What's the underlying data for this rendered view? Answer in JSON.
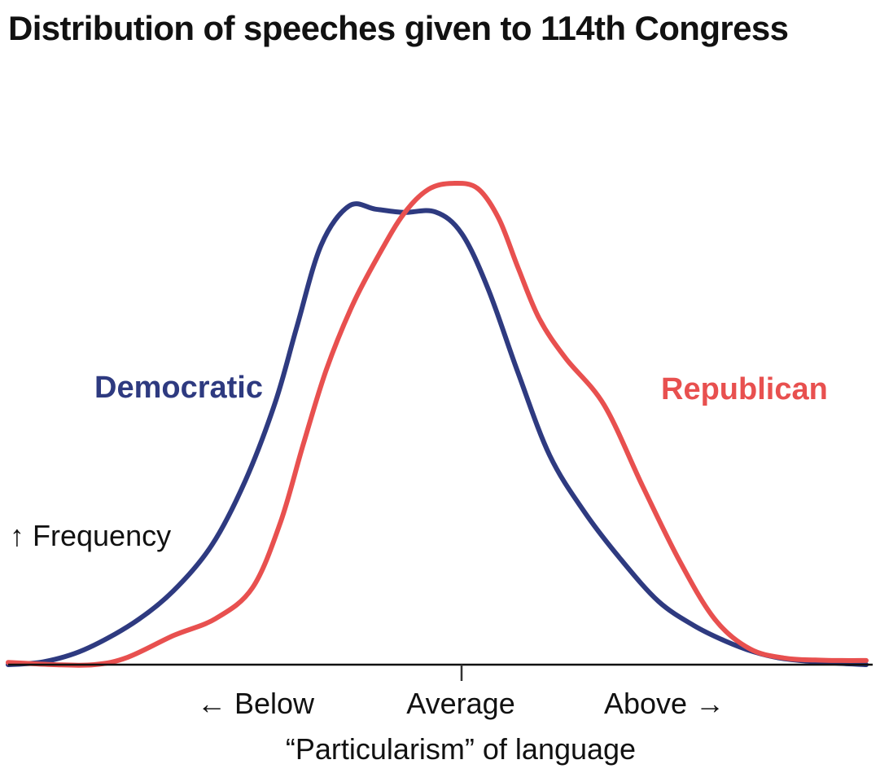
{
  "chart_data": {
    "type": "line",
    "title": "Distribution of speeches given to 114th Congress",
    "xlabel": "“Particularism” of language",
    "ylabel": "↑ Frequency",
    "x_ticks": [
      {
        "label": "← Below",
        "x": -1
      },
      {
        "label": "Average",
        "x": 0
      },
      {
        "label": "Above →",
        "x": 1
      }
    ],
    "xlim": [
      -2.56,
      2.32
    ],
    "ylim": [
      0,
      1
    ],
    "grid": false,
    "series": [
      {
        "name": "Democratic",
        "color": "#2e3a80",
        "x": [
          -2.56,
          -2.36,
          -2.13,
          -1.85,
          -1.62,
          -1.4,
          -1.21,
          -1.04,
          -0.92,
          -0.78,
          -0.62,
          -0.47,
          -0.31,
          -0.13,
          0.02,
          0.17,
          0.34,
          0.52,
          0.72,
          0.93,
          1.14,
          1.34,
          1.52,
          1.68,
          1.82,
          2.0,
          2.16,
          2.32
        ],
        "y": [
          0.0,
          0.006,
          0.032,
          0.09,
          0.16,
          0.26,
          0.4,
          0.57,
          0.73,
          0.91,
          0.995,
          0.988,
          0.981,
          0.982,
          0.935,
          0.815,
          0.633,
          0.454,
          0.33,
          0.226,
          0.137,
          0.085,
          0.051,
          0.028,
          0.015,
          0.007,
          0.003,
          0.0
        ]
      },
      {
        "name": "Republican",
        "color": "#e8504f",
        "x": [
          -2.56,
          -2.3,
          -2.07,
          -1.88,
          -1.62,
          -1.38,
          -1.17,
          -1.01,
          -0.88,
          -0.75,
          -0.6,
          -0.45,
          -0.31,
          -0.17,
          -0.03,
          0.11,
          0.23,
          0.34,
          0.46,
          0.61,
          0.83,
          1.05,
          1.26,
          1.46,
          1.66,
          1.86,
          2.03,
          2.18,
          2.32
        ],
        "y": [
          0.005,
          0.0,
          0.0,
          0.016,
          0.063,
          0.1,
          0.167,
          0.31,
          0.48,
          0.64,
          0.781,
          0.89,
          0.978,
          1.031,
          1.044,
          1.033,
          0.968,
          0.861,
          0.751,
          0.665,
          0.563,
          0.386,
          0.224,
          0.098,
          0.034,
          0.014,
          0.01,
          0.009,
          0.009
        ]
      }
    ]
  }
}
